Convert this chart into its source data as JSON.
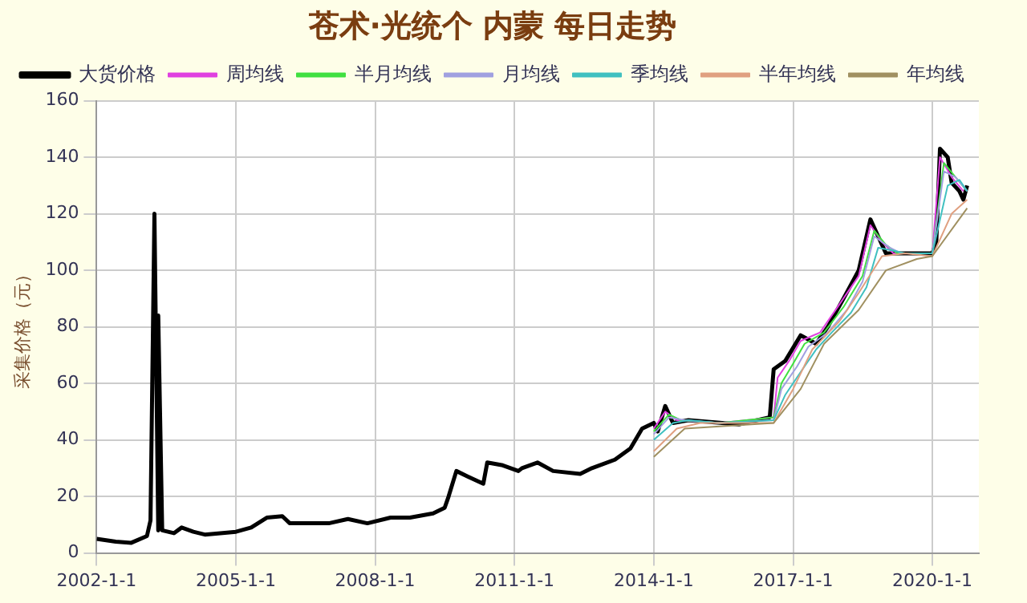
{
  "chart_data": {
    "type": "line",
    "title": "苍术·光统个 内蒙 每日走势",
    "ylabel": "采集价格（元）",
    "xlim": [
      "2002-01-01",
      "2021-01-01"
    ],
    "xticks": [
      {
        "value": "2002-01-01",
        "label": "2002-1-1"
      },
      {
        "value": "2005-01-01",
        "label": "2005-1-1"
      },
      {
        "value": "2008-01-01",
        "label": "2008-1-1"
      },
      {
        "value": "2011-01-01",
        "label": "2011-1-1"
      },
      {
        "value": "2014-01-01",
        "label": "2014-1-1"
      },
      {
        "value": "2017-01-01",
        "label": "2017-1-1"
      },
      {
        "value": "2020-01-01",
        "label": "2020-1-1"
      }
    ],
    "ylim": [
      0,
      160
    ],
    "yticks": [
      0,
      20,
      40,
      60,
      80,
      100,
      120,
      140,
      160
    ],
    "grid": true,
    "legend": "top",
    "marker": "none",
    "line_style": "solid",
    "series": [
      {
        "name": "大货价格",
        "color": "#000000",
        "x": [
          "2002-01",
          "2002-06",
          "2002-10",
          "2003-02",
          "2003-03",
          "2003-04",
          "2003-05",
          "2003-05",
          "2003-06",
          "2003-09",
          "2003-11",
          "2004-02",
          "2004-05",
          "2005-01",
          "2005-05",
          "2005-09",
          "2006-01",
          "2006-03",
          "2007-01",
          "2007-06",
          "2007-11",
          "2008-05",
          "2008-10",
          "2009-04",
          "2009-07",
          "2009-08",
          "2009-10",
          "2010-01",
          "2010-05",
          "2010-06",
          "2010-10",
          "2011-02",
          "2011-03",
          "2011-07",
          "2011-11",
          "2012-06",
          "2012-09",
          "2013-03",
          "2013-07",
          "2013-10",
          "2014-01",
          "2014-02",
          "2014-04",
          "2014-06",
          "2014-10",
          "2015-11",
          "2016-07",
          "2016-08",
          "2016-11",
          "2017-03",
          "2017-07",
          "2017-10",
          "2018-02",
          "2018-06",
          "2018-09",
          "2018-11",
          "2019-01",
          "2020-01",
          "2020-02",
          "2020-03",
          "2020-05",
          "2020-06",
          "2020-08",
          "2020-09",
          "2020-10"
        ],
        "values": [
          5,
          4,
          3.6,
          6,
          11.5,
          120,
          8,
          84,
          8,
          7,
          9,
          7.5,
          6.5,
          7.5,
          9,
          12.5,
          13,
          10.5,
          10.5,
          12,
          10.5,
          12.5,
          12.5,
          14,
          16,
          20,
          29,
          27,
          24.5,
          32,
          31,
          29,
          30,
          32,
          29,
          28,
          30,
          33,
          37,
          44,
          46,
          43,
          52,
          46,
          47,
          45.5,
          48,
          65,
          68,
          77,
          74,
          80,
          90,
          100,
          118,
          112,
          106,
          106,
          110,
          143,
          140,
          131,
          128,
          125,
          130
        ]
      },
      {
        "name": "周均线",
        "color": "#e040e0",
        "x": [
          "2014-01",
          "2014-04",
          "2014-07",
          "2015-06",
          "2016-08",
          "2016-09",
          "2016-12",
          "2017-03",
          "2017-08",
          "2018-01",
          "2018-06",
          "2018-09",
          "2018-12",
          "2019-03",
          "2020-01",
          "2020-03",
          "2020-06",
          "2020-09"
        ],
        "values": [
          44,
          50,
          47,
          46,
          48,
          62,
          68,
          75,
          78,
          88,
          98,
          116,
          110,
          106,
          106,
          140,
          133,
          128
        ]
      },
      {
        "name": "半月均线",
        "color": "#40e040",
        "x": [
          "2014-01",
          "2014-05",
          "2014-08",
          "2015-06",
          "2016-08",
          "2016-10",
          "2017-01",
          "2017-04",
          "2017-09",
          "2018-02",
          "2018-07",
          "2018-10",
          "2019-01",
          "2019-04",
          "2020-01",
          "2020-04",
          "2020-07",
          "2020-10"
        ],
        "values": [
          43,
          49,
          47,
          46,
          48,
          60,
          67,
          74,
          78,
          87,
          98,
          114,
          109,
          106,
          106,
          138,
          133,
          128
        ]
      },
      {
        "name": "月均线",
        "color": "#a0a0e0",
        "x": [
          "2014-01",
          "2014-05",
          "2014-09",
          "2015-06",
          "2016-08",
          "2016-10",
          "2017-02",
          "2017-05",
          "2017-10",
          "2018-03",
          "2018-07",
          "2018-10",
          "2019-02",
          "2019-05",
          "2020-01",
          "2020-04",
          "2020-07",
          "2020-10"
        ],
        "values": [
          42,
          48,
          47,
          46,
          47,
          58,
          66,
          73,
          78,
          86,
          96,
          112,
          108,
          106,
          106,
          135,
          133,
          128
        ]
      },
      {
        "name": "季均线",
        "color": "#40c0c0",
        "x": [
          "2014-01",
          "2014-06",
          "2014-10",
          "2015-06",
          "2016-08",
          "2016-11",
          "2017-03",
          "2017-07",
          "2017-11",
          "2018-04",
          "2018-08",
          "2018-11",
          "2019-03",
          "2019-06",
          "2020-01",
          "2020-05",
          "2020-08",
          "2020-10"
        ],
        "values": [
          40,
          46,
          47,
          46,
          47,
          56,
          64,
          72,
          78,
          85,
          94,
          108,
          107,
          106,
          106,
          130,
          132,
          128
        ]
      },
      {
        "name": "半年均线",
        "color": "#e0a080",
        "x": [
          "2014-01",
          "2014-07",
          "2015-01",
          "2016-08",
          "2017-01",
          "2017-06",
          "2018-01",
          "2018-06",
          "2018-12",
          "2019-06",
          "2020-01",
          "2020-06",
          "2020-10"
        ],
        "values": [
          36,
          44,
          46,
          46,
          58,
          72,
          82,
          92,
          105,
          106,
          105,
          120,
          125
        ]
      },
      {
        "name": "年均线",
        "color": "#a09060",
        "x": [
          "2014-01",
          "2014-09",
          "2016-08",
          "2017-03",
          "2017-09",
          "2018-06",
          "2019-01",
          "2019-09",
          "2020-01",
          "2020-10"
        ],
        "values": [
          34,
          44,
          46,
          58,
          74,
          86,
          100,
          104,
          105,
          122
        ]
      }
    ]
  }
}
